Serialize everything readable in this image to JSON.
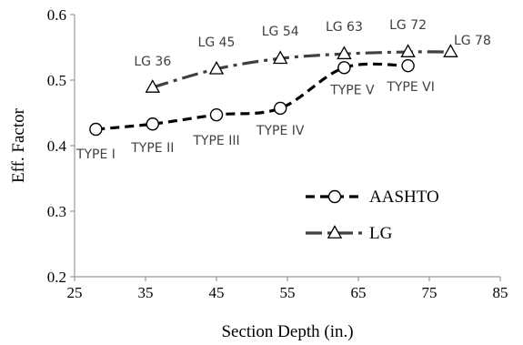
{
  "chart_data": {
    "type": "line",
    "xlabel": "Section Depth (in.)",
    "ylabel": "Eff. Factor",
    "xlim": [
      25,
      85
    ],
    "ylim": [
      0.2,
      0.6
    ],
    "xticks": [
      25,
      35,
      45,
      55,
      65,
      75,
      85
    ],
    "yticks": [
      0.2,
      0.3,
      0.4,
      0.5,
      0.6
    ],
    "x_tick_labels": [
      "25",
      "35",
      "45",
      "55",
      "65",
      "75",
      "85"
    ],
    "y_tick_labels": [
      "0.2",
      "0.3",
      "0.4",
      "0.5",
      "0.6"
    ],
    "grid": false,
    "legend_position": "lower-right",
    "series": [
      {
        "name": "AASHTO",
        "marker": "circle",
        "line_style": "dashed",
        "color": "#000000",
        "x": [
          28,
          36,
          45,
          54,
          63,
          72
        ],
        "y": [
          0.425,
          0.433,
          0.447,
          0.457,
          0.519,
          0.522
        ],
        "point_labels": [
          "TYPE I",
          "TYPE II",
          "TYPE III",
          "TYPE IV",
          "TYPE V",
          "TYPE VI"
        ]
      },
      {
        "name": "LG",
        "marker": "triangle",
        "line_style": "dash-dot",
        "color": "#404040",
        "x": [
          36,
          45,
          54,
          63,
          72,
          78
        ],
        "y": [
          0.489,
          0.517,
          0.533,
          0.54,
          0.543,
          0.543
        ],
        "point_labels": [
          "LG 36",
          "LG 45",
          "LG 54",
          "LG 63",
          "LG 72",
          "LG 78"
        ]
      }
    ]
  }
}
